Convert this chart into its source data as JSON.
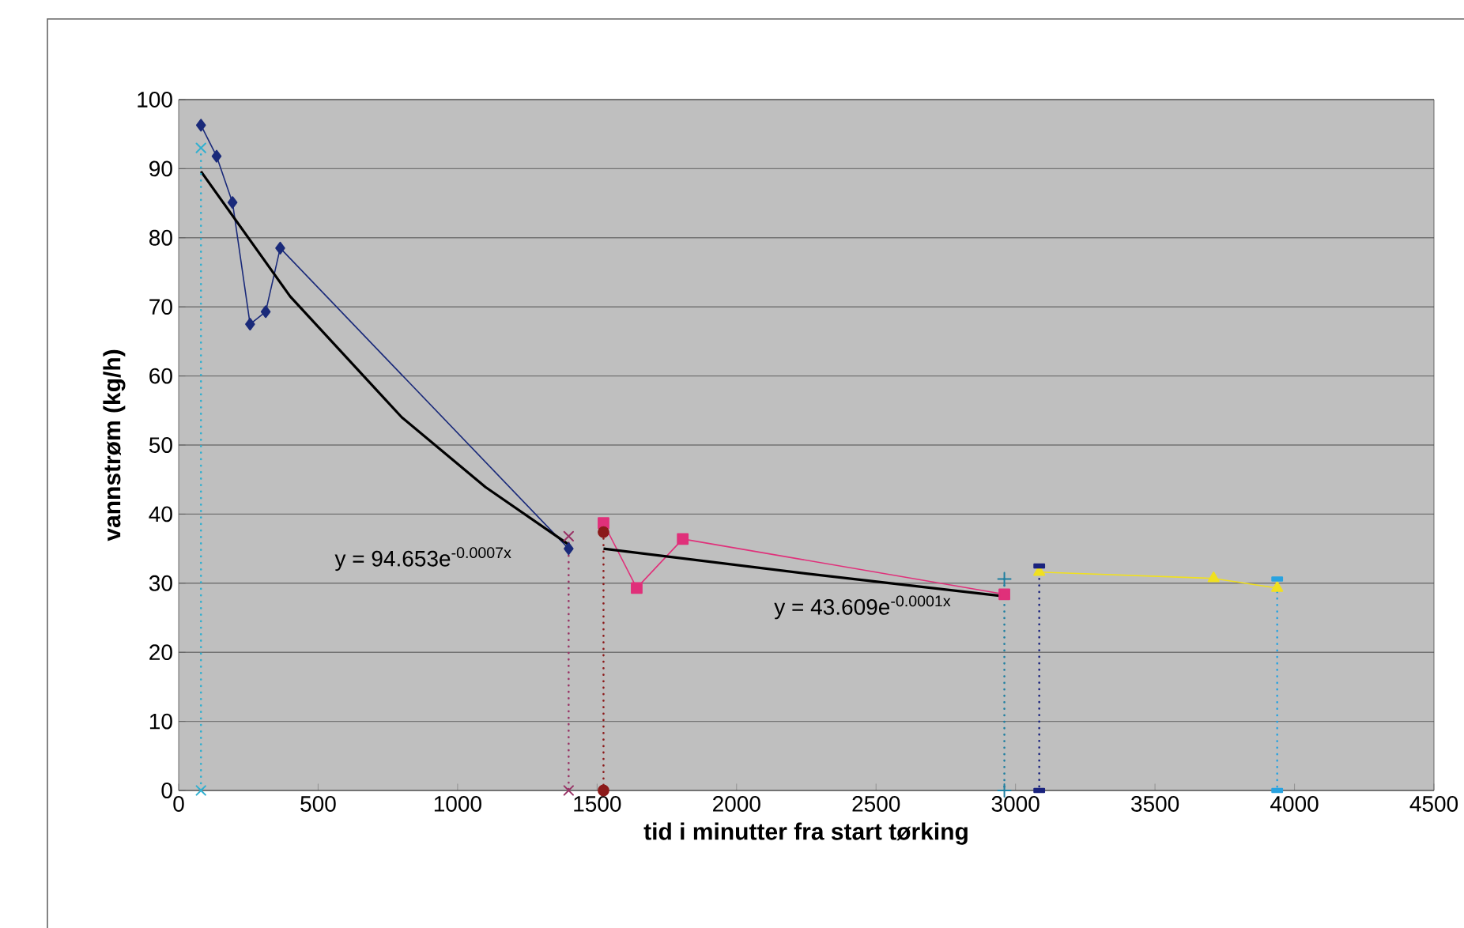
{
  "chart_data": {
    "type": "line",
    "xlabel": "tid i minutter fra start tørking",
    "ylabel": "vannstrøm (kg/h)",
    "xlim": [
      0,
      4500
    ],
    "xticks": [
      0,
      500,
      1000,
      1500,
      2000,
      2500,
      3000,
      3500,
      4000,
      4500
    ],
    "ylim": [
      0,
      100
    ],
    "yticks": [
      0,
      10,
      20,
      30,
      40,
      50,
      60,
      70,
      80,
      90,
      100
    ],
    "grid": "y",
    "series": [
      {
        "color": "#1a2a7a",
        "marker": "diamond",
        "x": [
          80,
          136,
          193,
          256,
          312,
          364,
          1398
        ],
        "values": [
          96.3,
          91.8,
          85.1,
          67.5,
          69.3,
          78.5,
          35.0
        ]
      },
      {
        "color": "#e0307a",
        "marker": "square",
        "x": [
          1523,
          1642,
          1807,
          2960
        ],
        "values": [
          38.7,
          29.3,
          36.4,
          28.4
        ]
      },
      {
        "color": "#f0e020",
        "marker": "triangle",
        "x": [
          3085,
          3710,
          3938
        ],
        "values": [
          31.6,
          30.7,
          29.3
        ]
      },
      {
        "color": "#000000",
        "marker": "none",
        "x": [
          80,
          400,
          800,
          1100,
          1398
        ],
        "values": [
          89.6,
          71.5,
          54.0,
          43.9,
          35.6
        ]
      },
      {
        "color": "#000000",
        "marker": "none",
        "x": [
          1523,
          2250,
          2960
        ],
        "values": [
          35.0,
          31.4,
          28.1
        ]
      },
      {
        "color": "#30b0d0",
        "marker": "cross",
        "line_style": "dotted",
        "x": [
          80,
          80
        ],
        "values": [
          93.0,
          0
        ]
      },
      {
        "color": "#993366",
        "marker": "cross",
        "line_style": "dotted",
        "x": [
          1398,
          1398
        ],
        "values": [
          36.8,
          0
        ]
      },
      {
        "color": "#8b1a1a",
        "marker": "circle",
        "line_style": "dotted",
        "x": [
          1523,
          1523
        ],
        "values": [
          37.4,
          0
        ]
      },
      {
        "color": "#1f7fa0",
        "marker": "plus",
        "line_style": "dotted",
        "x": [
          2960,
          2960
        ],
        "values": [
          30.6,
          0
        ]
      },
      {
        "color": "#1a237e",
        "marker": "square",
        "line_style": "dotted",
        "x": [
          3085,
          3085
        ],
        "values": [
          32.5,
          0
        ]
      },
      {
        "color": "#29a3e0",
        "marker": "square",
        "line_style": "dotted",
        "x": [
          3938,
          3938
        ],
        "values": [
          30.6,
          0
        ]
      }
    ],
    "annotations": [
      "y = 94.653e$^{-0.0007x}$",
      "y = 43.609e$^{-0.0001x}$"
    ]
  }
}
